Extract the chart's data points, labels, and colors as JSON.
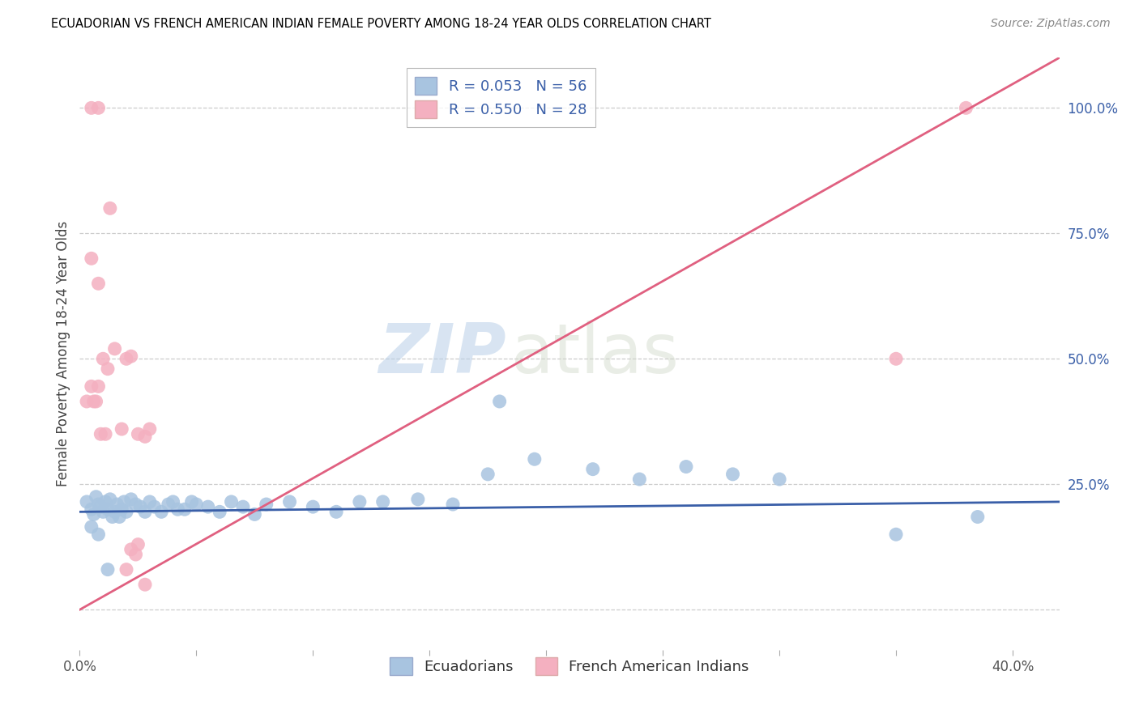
{
  "title": "ECUADORIAN VS FRENCH AMERICAN INDIAN FEMALE POVERTY AMONG 18-24 YEAR OLDS CORRELATION CHART",
  "source": "Source: ZipAtlas.com",
  "ylabel": "Female Poverty Among 18-24 Year Olds",
  "xlim": [
    0.0,
    0.42
  ],
  "ylim": [
    -0.08,
    1.1
  ],
  "xticks": [
    0.0,
    0.05,
    0.1,
    0.15,
    0.2,
    0.25,
    0.3,
    0.35,
    0.4
  ],
  "xticklabels": [
    "0.0%",
    "",
    "",
    "",
    "",
    "",
    "",
    "",
    "40.0%"
  ],
  "yticks_right": [
    0.25,
    0.5,
    0.75,
    1.0
  ],
  "yticklabels_right": [
    "25.0%",
    "50.0%",
    "75.0%",
    "100.0%"
  ],
  "blue_R": "R = 0.053",
  "blue_N": "N = 56",
  "pink_R": "R = 0.550",
  "pink_N": "N = 28",
  "blue_color": "#a8c4e0",
  "pink_color": "#f4b0c0",
  "blue_line_color": "#3a5fa8",
  "pink_line_color": "#e06080",
  "legend_label_blue": "Ecuadorians",
  "legend_label_pink": "French American Indians",
  "watermark_zip": "ZIP",
  "watermark_atlas": "atlas",
  "blue_trend_x": [
    0.0,
    0.42
  ],
  "blue_trend_y": [
    0.195,
    0.215
  ],
  "pink_trend_x": [
    0.0,
    0.42
  ],
  "pink_trend_y": [
    0.0,
    1.1
  ],
  "blue_x": [
    0.003,
    0.005,
    0.006,
    0.007,
    0.008,
    0.009,
    0.01,
    0.011,
    0.012,
    0.013,
    0.014,
    0.015,
    0.016,
    0.017,
    0.018,
    0.019,
    0.02,
    0.022,
    0.024,
    0.026,
    0.028,
    0.03,
    0.032,
    0.035,
    0.038,
    0.04,
    0.042,
    0.045,
    0.048,
    0.05,
    0.055,
    0.06,
    0.065,
    0.07,
    0.075,
    0.08,
    0.09,
    0.1,
    0.11,
    0.12,
    0.13,
    0.145,
    0.16,
    0.175,
    0.195,
    0.22,
    0.24,
    0.26,
    0.28,
    0.3,
    0.18,
    0.35,
    0.385,
    0.005,
    0.008,
    0.012
  ],
  "blue_y": [
    0.215,
    0.2,
    0.19,
    0.225,
    0.21,
    0.205,
    0.195,
    0.215,
    0.2,
    0.22,
    0.185,
    0.195,
    0.21,
    0.185,
    0.2,
    0.215,
    0.195,
    0.22,
    0.21,
    0.205,
    0.195,
    0.215,
    0.205,
    0.195,
    0.21,
    0.215,
    0.2,
    0.2,
    0.215,
    0.21,
    0.205,
    0.195,
    0.215,
    0.205,
    0.19,
    0.21,
    0.215,
    0.205,
    0.195,
    0.215,
    0.215,
    0.22,
    0.21,
    0.27,
    0.3,
    0.28,
    0.26,
    0.285,
    0.27,
    0.26,
    0.415,
    0.15,
    0.185,
    0.165,
    0.15,
    0.08
  ],
  "pink_x": [
    0.005,
    0.008,
    0.005,
    0.008,
    0.01,
    0.012,
    0.015,
    0.018,
    0.02,
    0.022,
    0.025,
    0.028,
    0.03,
    0.003,
    0.006,
    0.007,
    0.009,
    0.011,
    0.013,
    0.02,
    0.025,
    0.022,
    0.024,
    0.028,
    0.35,
    0.38,
    0.005,
    0.008
  ],
  "pink_y": [
    1.0,
    1.0,
    0.445,
    0.445,
    0.5,
    0.48,
    0.52,
    0.36,
    0.5,
    0.505,
    0.35,
    0.345,
    0.36,
    0.415,
    0.415,
    0.415,
    0.35,
    0.35,
    0.8,
    0.08,
    0.13,
    0.12,
    0.11,
    0.05,
    0.5,
    1.0,
    0.7,
    0.65
  ]
}
